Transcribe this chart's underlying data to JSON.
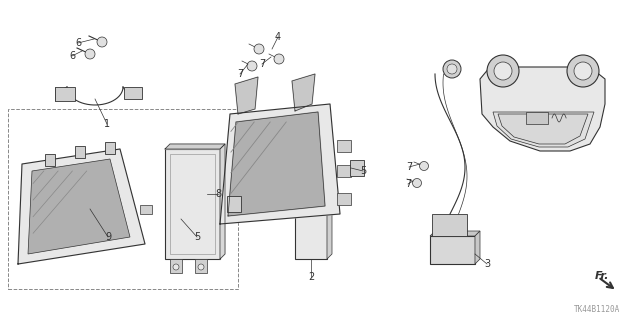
{
  "bg_color": "#ffffff",
  "fig_width": 6.4,
  "fig_height": 3.19,
  "dpi": 100,
  "watermark": "TK44B1120A",
  "fr_label": "Fr.",
  "line_color": "#333333",
  "shade_color": "#c8c8c8",
  "light_color": "#e8e8e8",
  "dash_color": "#888888"
}
